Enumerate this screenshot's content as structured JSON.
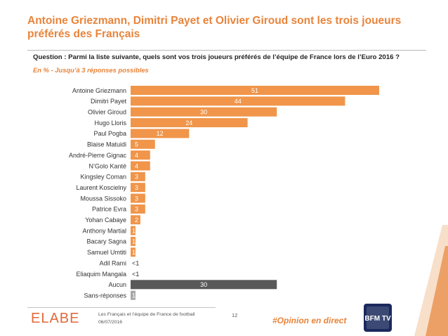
{
  "header": {
    "title": "Antoine Griezmann, Dimitri Payet et Olivier Giroud sont les trois joueurs préférés des Français",
    "question": "Question : Parmi la liste suivante, quels sont vos trois joueurs préférés de l’équipe de France lors de l’Euro 2016 ?",
    "subtitle": "En % - Jusqu’à 3 réponses possibles"
  },
  "chart_data": {
    "type": "bar",
    "orientation": "horizontal",
    "categories": [
      "Antoine Griezmann",
      "Dimitri Payet",
      "Olivier Giroud",
      "Hugo Lloris",
      "Paul Pogba",
      "Blaise Matuidi",
      "André-Pierre Gignac",
      "N’Golo Kanté",
      "Kingsley Coman",
      "Laurent Koscielny",
      "Moussa Sissoko",
      "Patrice Evra",
      "Yohan Cabaye",
      "Anthony Martial",
      "Bacary Sagna",
      "Samuel Umtiti",
      "Adil Rami",
      "Eliaquim Mangala",
      "Aucun",
      "Sans-réponses"
    ],
    "values": [
      51,
      44,
      30,
      24,
      12,
      5,
      4,
      4,
      3,
      3,
      3,
      3,
      2,
      1,
      1,
      1,
      0,
      0,
      30,
      1
    ],
    "labels": [
      "51",
      "44",
      "30",
      "24",
      "12",
      "5",
      "4",
      "4",
      "3",
      "3",
      "3",
      "3",
      "2",
      "1",
      "1",
      "1",
      "<1",
      "<1",
      "30",
      "1"
    ],
    "bar_colors": [
      "#f0954a",
      "#f0954a",
      "#f0954a",
      "#f0954a",
      "#f0954a",
      "#f0954a",
      "#f0954a",
      "#f0954a",
      "#f0954a",
      "#f0954a",
      "#f0954a",
      "#f0954a",
      "#f0954a",
      "#f0954a",
      "#f0954a",
      "#f0954a",
      "#f0954a",
      "#f0954a",
      "#595959",
      "#a6a6a6"
    ],
    "xlim": [
      0,
      51
    ],
    "grid": false,
    "legend": "none"
  },
  "footer": {
    "logo_text": "ELABE",
    "study": "Les Français et l’équipe de France de football",
    "date": "06/07/2016",
    "page": "12",
    "hashtag": "#Opinion en direct",
    "partner_logo_text": "BFM TV"
  },
  "colors": {
    "accent": "#e8843b",
    "bar": "#f0954a",
    "none_bar": "#595959",
    "no_answer_bar": "#a6a6a6"
  }
}
